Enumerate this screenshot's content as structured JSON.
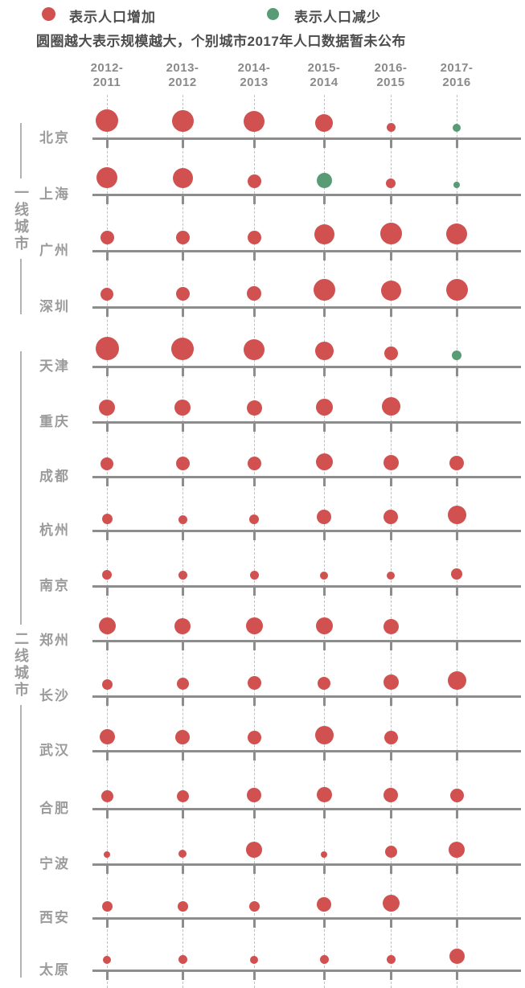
{
  "legend": {
    "increase_label": "表示人口增加",
    "decrease_label": "表示人口减少"
  },
  "note": "圆圈越大表示规模越大，个别城市2017年人口数据暂未公布",
  "colors": {
    "increase": "#d05150",
    "decrease": "#589b74",
    "axis": "#8d8d8d",
    "grid_dash": "#bfbfbf",
    "header_text": "#8a8a8a",
    "label_text": "#9b9b9b",
    "bracket": "#b3b3b3",
    "legend_text": "#4d4d4d"
  },
  "chart_data": {
    "type": "scatter",
    "mark": "bubble",
    "size_encodes": "magnitude of population change (bigger circle = bigger scale)",
    "color_encodes": {
      "increase": "population increase (red)",
      "decrease": "population decrease (green)"
    },
    "missing_note": "个别城市2017年人口数据暂未公布 (some cities have no 2017 bubble)",
    "legend_position": "top",
    "columns": [
      "2012-2011",
      "2013-2012",
      "2014-2013",
      "2015-2014",
      "2016-2015",
      "2017-2016"
    ],
    "groups": [
      {
        "label": "一线城市",
        "cities": [
          "北京",
          "上海",
          "广州",
          "深圳"
        ]
      },
      {
        "label": "二线城市",
        "cities": [
          "天津",
          "重庆",
          "成都",
          "杭州",
          "南京",
          "郑州",
          "长沙",
          "武汉",
          "合肥",
          "宁波",
          "西安",
          "太原"
        ]
      }
    ],
    "rows": [
      {
        "city": "北京",
        "group": "一线城市",
        "bubbles": [
          {
            "size": 28,
            "change": "increase"
          },
          {
            "size": 27,
            "change": "increase"
          },
          {
            "size": 26,
            "change": "increase"
          },
          {
            "size": 22,
            "change": "increase"
          },
          {
            "size": 11,
            "change": "increase"
          },
          {
            "size": 10,
            "change": "decrease"
          }
        ]
      },
      {
        "city": "上海",
        "group": "一线城市",
        "bubbles": [
          {
            "size": 26,
            "change": "increase"
          },
          {
            "size": 25,
            "change": "increase"
          },
          {
            "size": 17,
            "change": "increase"
          },
          {
            "size": 19,
            "change": "decrease"
          },
          {
            "size": 12,
            "change": "increase"
          },
          {
            "size": 8,
            "change": "decrease"
          }
        ]
      },
      {
        "city": "广州",
        "group": "一线城市",
        "bubbles": [
          {
            "size": 17,
            "change": "increase"
          },
          {
            "size": 17,
            "change": "increase"
          },
          {
            "size": 17,
            "change": "increase"
          },
          {
            "size": 25,
            "change": "increase"
          },
          {
            "size": 27,
            "change": "increase"
          },
          {
            "size": 26,
            "change": "increase"
          }
        ]
      },
      {
        "city": "深圳",
        "group": "一线城市",
        "bubbles": [
          {
            "size": 16,
            "change": "increase"
          },
          {
            "size": 17,
            "change": "increase"
          },
          {
            "size": 18,
            "change": "increase"
          },
          {
            "size": 27,
            "change": "increase"
          },
          {
            "size": 25,
            "change": "increase"
          },
          {
            "size": 27,
            "change": "increase"
          }
        ]
      },
      {
        "city": "天津",
        "group": "二线城市",
        "bubbles": [
          {
            "size": 29,
            "change": "increase"
          },
          {
            "size": 28,
            "change": "increase"
          },
          {
            "size": 26,
            "change": "increase"
          },
          {
            "size": 23,
            "change": "increase"
          },
          {
            "size": 17,
            "change": "increase"
          },
          {
            "size": 12,
            "change": "decrease"
          }
        ]
      },
      {
        "city": "重庆",
        "group": "二线城市",
        "bubbles": [
          {
            "size": 20,
            "change": "increase"
          },
          {
            "size": 20,
            "change": "increase"
          },
          {
            "size": 19,
            "change": "increase"
          },
          {
            "size": 21,
            "change": "increase"
          },
          {
            "size": 23,
            "change": "increase"
          },
          null
        ]
      },
      {
        "city": "成都",
        "group": "二线城市",
        "bubbles": [
          {
            "size": 16,
            "change": "increase"
          },
          {
            "size": 17,
            "change": "increase"
          },
          {
            "size": 17,
            "change": "increase"
          },
          {
            "size": 21,
            "change": "increase"
          },
          {
            "size": 19,
            "change": "increase"
          },
          {
            "size": 18,
            "change": "increase"
          }
        ]
      },
      {
        "city": "杭州",
        "group": "二线城市",
        "bubbles": [
          {
            "size": 13,
            "change": "increase"
          },
          {
            "size": 11,
            "change": "increase"
          },
          {
            "size": 12,
            "change": "increase"
          },
          {
            "size": 18,
            "change": "increase"
          },
          {
            "size": 18,
            "change": "increase"
          },
          {
            "size": 23,
            "change": "increase"
          }
        ]
      },
      {
        "city": "南京",
        "group": "二线城市",
        "bubbles": [
          {
            "size": 12,
            "change": "increase"
          },
          {
            "size": 11,
            "change": "increase"
          },
          {
            "size": 11,
            "change": "increase"
          },
          {
            "size": 10,
            "change": "increase"
          },
          {
            "size": 10,
            "change": "increase"
          },
          {
            "size": 14,
            "change": "increase"
          }
        ]
      },
      {
        "city": "郑州",
        "group": "二线城市",
        "bubbles": [
          {
            "size": 21,
            "change": "increase"
          },
          {
            "size": 20,
            "change": "increase"
          },
          {
            "size": 21,
            "change": "increase"
          },
          {
            "size": 21,
            "change": "increase"
          },
          {
            "size": 19,
            "change": "increase"
          },
          null
        ]
      },
      {
        "city": "长沙",
        "group": "二线城市",
        "bubbles": [
          {
            "size": 13,
            "change": "increase"
          },
          {
            "size": 15,
            "change": "increase"
          },
          {
            "size": 17,
            "change": "increase"
          },
          {
            "size": 16,
            "change": "increase"
          },
          {
            "size": 19,
            "change": "increase"
          },
          {
            "size": 23,
            "change": "increase"
          }
        ]
      },
      {
        "city": "武汉",
        "group": "二线城市",
        "bubbles": [
          {
            "size": 19,
            "change": "increase"
          },
          {
            "size": 18,
            "change": "increase"
          },
          {
            "size": 17,
            "change": "increase"
          },
          {
            "size": 23,
            "change": "increase"
          },
          {
            "size": 17,
            "change": "increase"
          },
          null
        ]
      },
      {
        "city": "合肥",
        "group": "二线城市",
        "bubbles": [
          {
            "size": 15,
            "change": "increase"
          },
          {
            "size": 15,
            "change": "increase"
          },
          {
            "size": 18,
            "change": "increase"
          },
          {
            "size": 19,
            "change": "increase"
          },
          {
            "size": 18,
            "change": "increase"
          },
          {
            "size": 17,
            "change": "increase"
          }
        ]
      },
      {
        "city": "宁波",
        "group": "二线城市",
        "bubbles": [
          {
            "size": 8,
            "change": "increase"
          },
          {
            "size": 10,
            "change": "increase"
          },
          {
            "size": 20,
            "change": "increase"
          },
          {
            "size": 8,
            "change": "increase"
          },
          {
            "size": 15,
            "change": "increase"
          },
          {
            "size": 20,
            "change": "increase"
          }
        ]
      },
      {
        "city": "西安",
        "group": "二线城市",
        "bubbles": [
          {
            "size": 13,
            "change": "increase"
          },
          {
            "size": 13,
            "change": "increase"
          },
          {
            "size": 13,
            "change": "increase"
          },
          {
            "size": 18,
            "change": "increase"
          },
          {
            "size": 21,
            "change": "increase"
          },
          null
        ]
      },
      {
        "city": "太原",
        "group": "二线城市",
        "bubbles": [
          {
            "size": 10,
            "change": "increase"
          },
          {
            "size": 11,
            "change": "increase"
          },
          {
            "size": 10,
            "change": "increase"
          },
          {
            "size": 11,
            "change": "increase"
          },
          {
            "size": 11,
            "change": "increase"
          },
          {
            "size": 19,
            "change": "increase"
          }
        ]
      }
    ]
  }
}
